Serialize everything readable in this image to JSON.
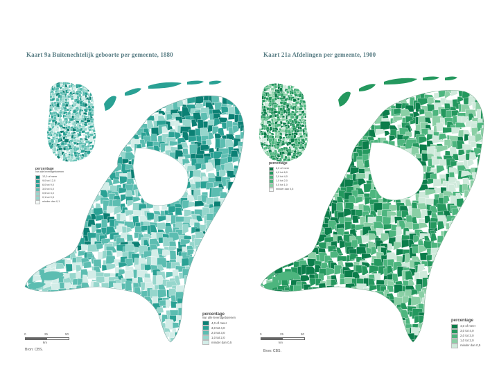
{
  "maps": [
    {
      "title": "Kaart 9a Buitenechtelijk geboorte per gemeente, 1880",
      "palette": [
        "#0b8074",
        "#2aa194",
        "#5cbdb1",
        "#96d6cc",
        "#d3ede8"
      ],
      "shade_weights": [
        0.12,
        0.22,
        0.32,
        0.24,
        0.1
      ],
      "inset_legend": {
        "title": "percentage",
        "subtitle": "van alle levendgeborenen",
        "items": [
          "12,0 of meer",
          "9,0 tot 12,0",
          "6,0 tot 9,0",
          "3,0 tot 6,0",
          "0,5 tot 3,0",
          "0,1 tot 0,5",
          "minder dan 0,1"
        ]
      },
      "legend": {
        "title": "percentage",
        "subtitle": "van alle levendgeborenen",
        "items": [
          "4,0 of meer",
          "3,0 tot 4,0",
          "2,0 tot 3,0",
          "1,0 tot 2,0",
          "minder dan 0,5"
        ]
      },
      "scale": {
        "ticks": [
          "0",
          "25",
          "50"
        ],
        "unit": "km"
      },
      "source": "Bron: CBS."
    },
    {
      "title": "Kaart 21a Afdelingen per gemeente, 1900",
      "palette": [
        "#0b7d4a",
        "#24985e",
        "#4db57e",
        "#8acfa5",
        "#cfeadb"
      ],
      "shade_weights": [
        0.22,
        0.28,
        0.24,
        0.16,
        0.1
      ],
      "inset_legend": {
        "title": "percentage",
        "subtitle": "",
        "items": [
          "6,0 of meer",
          "4,0 tot 6,0",
          "2,0 tot 4,0",
          "1,0 tot 2,0",
          "0,5 tot 1,0",
          "minder dan 0,5"
        ]
      },
      "legend": {
        "title": "percentage",
        "subtitle": "",
        "items": [
          "4,0 of meer",
          "3,0 tot 4,0",
          "2,0 tot 3,0",
          "1,0 tot 2,0",
          "minder dan 0,5"
        ]
      },
      "scale": {
        "ticks": [
          "0",
          "25",
          "50"
        ],
        "unit": "km"
      },
      "source": "Bron: CBS."
    }
  ]
}
